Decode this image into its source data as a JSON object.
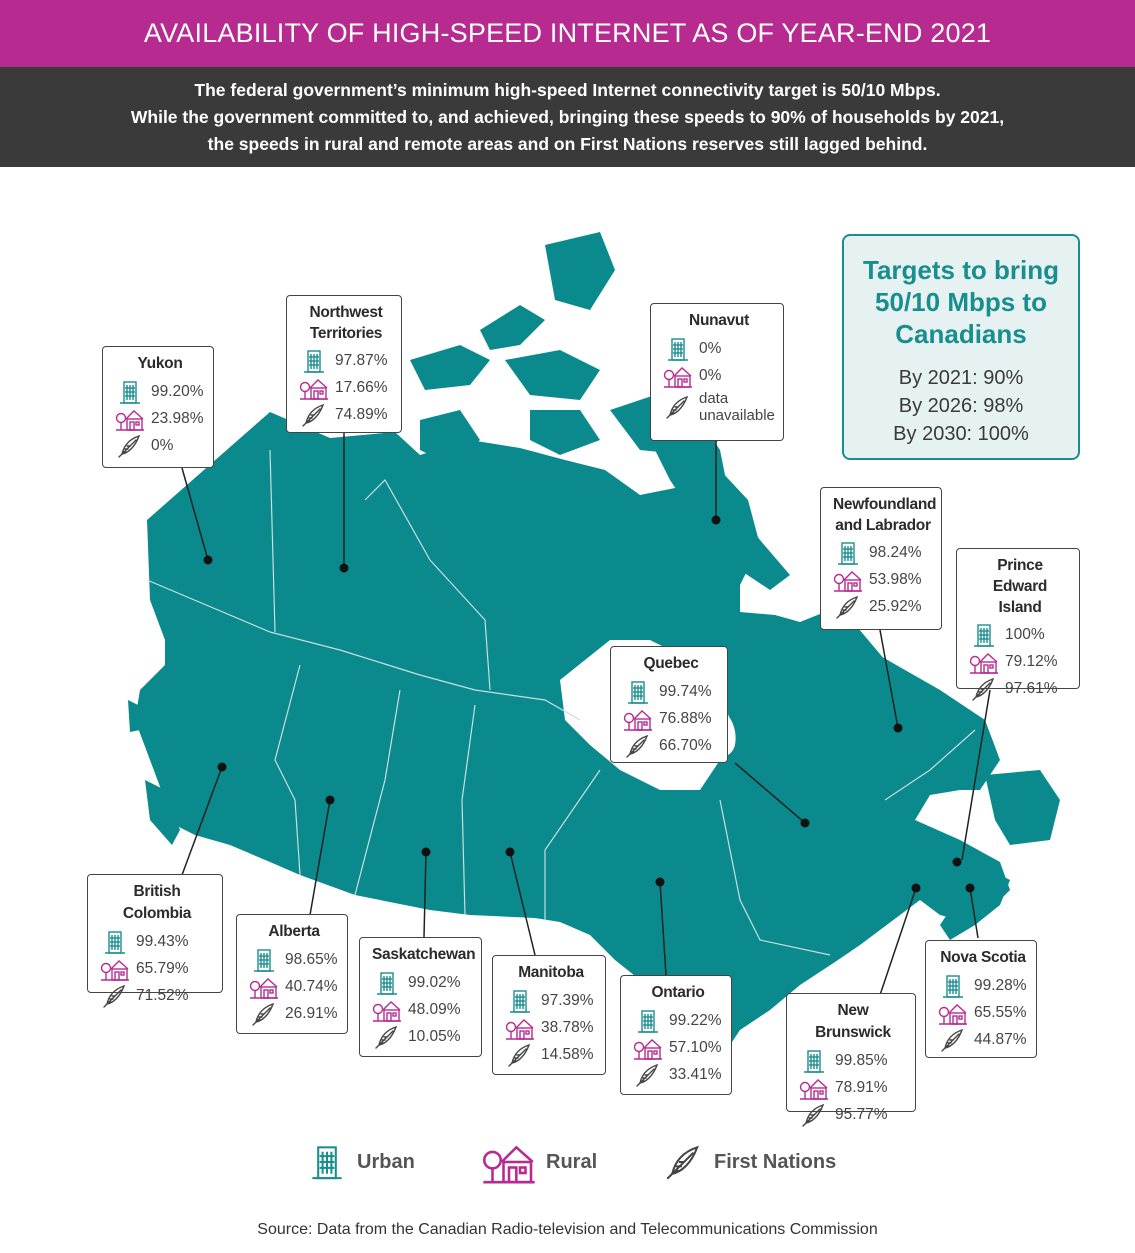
{
  "title": "AVAILABILITY OF HIGH-SPEED INTERNET AS OF YEAR-END 2021",
  "subtitle_lines": [
    "The federal government’s minimum high-speed Internet connectivity target is 50/10 Mbps.",
    "While the government committed to, and achieved, bringing these speeds to 90% of households by 2021,",
    "the speeds in rural and remote areas and on First Nations reserves still lagged behind."
  ],
  "targets": {
    "title_lines": [
      "Targets to bring",
      "50/10 Mbps to",
      "Canadians"
    ],
    "lines": [
      "By 2021: 90%",
      "By 2026: 98%",
      "By 2030: 100%"
    ]
  },
  "colors": {
    "map": "#0a8a8c",
    "accent": "#b72b91",
    "urban_icon": "#1a8e8e",
    "rural_icon": "#b72b91"
  },
  "provinces": [
    {
      "id": "yukon",
      "name_lines": [
        "Yukon"
      ],
      "urban": "99.20%",
      "rural": "23.98%",
      "first_nations": "0%"
    },
    {
      "id": "nwt",
      "name_lines": [
        "Northwest",
        "Territories"
      ],
      "urban": "97.87%",
      "rural": "17.66%",
      "first_nations": "74.89%"
    },
    {
      "id": "nunavut",
      "name_lines": [
        "Nunavut"
      ],
      "urban": "0%",
      "rural": "0%",
      "first_nations_lines": [
        "data",
        "unavailable"
      ]
    },
    {
      "id": "nl",
      "name_lines": [
        "Newfoundland",
        "and Labrador"
      ],
      "urban": "98.24%",
      "rural": "53.98%",
      "first_nations": "25.92%"
    },
    {
      "id": "pei",
      "name_lines": [
        "Prince Edward",
        "Island"
      ],
      "urban": "100%",
      "rural": "79.12%",
      "first_nations": "97.61%"
    },
    {
      "id": "quebec",
      "name_lines": [
        "Quebec"
      ],
      "urban": "99.74%",
      "rural": "76.88%",
      "first_nations": "66.70%"
    },
    {
      "id": "bc",
      "name_lines": [
        "British Colombia"
      ],
      "urban": "99.43%",
      "rural": "65.79%",
      "first_nations": "71.52%"
    },
    {
      "id": "alberta",
      "name_lines": [
        "Alberta"
      ],
      "urban": "98.65%",
      "rural": "40.74%",
      "first_nations": "26.91%"
    },
    {
      "id": "sask",
      "name_lines": [
        "Saskatchewan"
      ],
      "urban": "99.02%",
      "rural": "48.09%",
      "first_nations": "10.05%"
    },
    {
      "id": "manitoba",
      "name_lines": [
        "Manitoba"
      ],
      "urban": "97.39%",
      "rural": "38.78%",
      "first_nations": "14.58%"
    },
    {
      "id": "ontario",
      "name_lines": [
        "Ontario"
      ],
      "urban": "99.22%",
      "rural": "57.10%",
      "first_nations": "33.41%"
    },
    {
      "id": "nb",
      "name_lines": [
        "New Brunswick"
      ],
      "urban": "99.85%",
      "rural": "78.91%",
      "first_nations": "95.77%"
    },
    {
      "id": "ns",
      "name_lines": [
        "Nova Scotia"
      ],
      "urban": "99.28%",
      "rural": "65.55%",
      "first_nations": "44.87%"
    }
  ],
  "legend": {
    "urban": "Urban",
    "rural": "Rural",
    "first_nations": "First Nations"
  },
  "source": "Source: Data from the Canadian Radio-television and Telecommunications Commission"
}
